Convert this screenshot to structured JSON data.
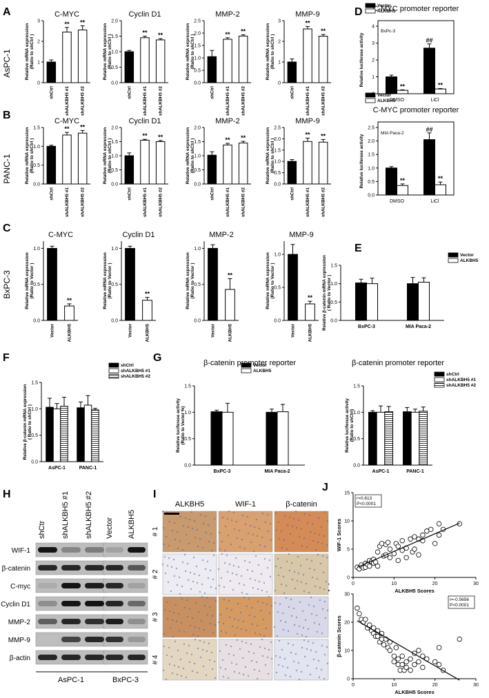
{
  "panel_letters": [
    "A",
    "B",
    "C",
    "D",
    "E",
    "F",
    "G",
    "H",
    "I",
    "J",
    "K"
  ],
  "row_labels": {
    "A": "AsPC-1",
    "B": "PANC-1",
    "C": "BxPC-3"
  },
  "sig": {
    "two": "**",
    "hash": "##"
  },
  "chart_data": [
    {
      "id": "A-cmyc",
      "type": "bar",
      "title": "C-MYC",
      "ylabel": "Relative mRNA expression\n(Ratio to shCtrl )",
      "categories": [
        "shCtrl",
        "shALKBH5 #1",
        "shALKBH5 #2"
      ],
      "values": [
        1.0,
        2.45,
        2.55
      ],
      "errors": [
        0.1,
        0.22,
        0.2
      ],
      "ylim": [
        0,
        3
      ],
      "ticks": [
        "0",
        "1",
        "2",
        "3"
      ],
      "fills": [
        "#000",
        "#fff",
        "#fff"
      ],
      "annot": [
        "",
        "**",
        "**"
      ]
    },
    {
      "id": "A-cyclin",
      "type": "bar",
      "title": "Cyclin D1",
      "ylabel": "Relative mRNA expression\n(Ratio to shCtrl )",
      "categories": [
        "shCtrl",
        "shALKBH5 #1",
        "shALKBH5 #2"
      ],
      "values": [
        1.0,
        1.45,
        1.38
      ],
      "errors": [
        0.04,
        0.05,
        0.04
      ],
      "ylim": [
        0,
        2
      ],
      "ticks": [
        "0.0",
        "0.5",
        "1.0",
        "1.5",
        "2.0"
      ],
      "fills": [
        "#000",
        "#fff",
        "#fff"
      ],
      "annot": [
        "",
        "**",
        "**"
      ]
    },
    {
      "id": "A-mmp2",
      "type": "bar",
      "title": "MMP-2",
      "ylabel": "Relative mRNA expression\n(Ratio to shCtrl )",
      "categories": [
        "shCtrl",
        "shALKBH5 #1",
        "shALKBH5 #2"
      ],
      "values": [
        1.05,
        1.75,
        1.88
      ],
      "errors": [
        0.25,
        0.06,
        0.05
      ],
      "ylim": [
        0,
        2.5
      ],
      "ticks": [
        "0.0",
        "0.5",
        "1.0",
        "1.5",
        "2.0",
        "2.5"
      ],
      "fills": [
        "#000",
        "#fff",
        "#fff"
      ],
      "annot": [
        "",
        "**",
        "**"
      ]
    },
    {
      "id": "A-mmp9",
      "type": "bar",
      "title": "MMP-9",
      "ylabel": "Relative mRNA expression\n(Ratio to shCtrl )",
      "categories": [
        "shCtrl",
        "shALKBH5 #1",
        "shALKBH5 #2"
      ],
      "values": [
        1.0,
        2.6,
        2.25
      ],
      "errors": [
        0.15,
        0.12,
        0.08
      ],
      "ylim": [
        0,
        3
      ],
      "ticks": [
        "0",
        "1",
        "2",
        "3"
      ],
      "fills": [
        "#000",
        "#fff",
        "#fff"
      ],
      "annot": [
        "",
        "**",
        "**"
      ]
    },
    {
      "id": "B-cmyc",
      "type": "bar",
      "title": "C-MYC",
      "ylabel": "Relative mRNA expression\n(Ratio to shCtrl )",
      "categories": [
        "shCtrl",
        "shALKBH5 #1",
        "shALKBH5 #2"
      ],
      "values": [
        1.0,
        1.3,
        1.35
      ],
      "errors": [
        0.03,
        0.07,
        0.07
      ],
      "ylim": [
        0,
        1.5
      ],
      "ticks": [
        "0.0",
        "0.5",
        "1.0",
        "1.5"
      ],
      "fills": [
        "#000",
        "#fff",
        "#fff"
      ],
      "annot": [
        "",
        "**",
        "**"
      ]
    },
    {
      "id": "B-cyclin",
      "type": "bar",
      "title": "Cyclin D1",
      "ylabel": "Relative mRNA expression\n(Ratio to shCtrl )",
      "categories": [
        "shCtrl",
        "shALKBH5 #1",
        "shALKBH5 #2"
      ],
      "values": [
        1.0,
        1.55,
        1.5
      ],
      "errors": [
        0.1,
        0.03,
        0.04
      ],
      "ylim": [
        0,
        2
      ],
      "ticks": [
        "0.0",
        "0.5",
        "1.0",
        "1.5",
        "2.0"
      ],
      "fills": [
        "#000",
        "#fff",
        "#fff"
      ],
      "annot": [
        "",
        "**",
        "**"
      ]
    },
    {
      "id": "B-mmp2",
      "type": "bar",
      "title": "MMP-2",
      "ylabel": "Relative mRNA expression\n(Ratio to shCtrl )",
      "categories": [
        "shCtrl",
        "shALKBH5 #1",
        "shALKBH5 #2"
      ],
      "values": [
        1.02,
        1.38,
        1.45
      ],
      "errors": [
        0.12,
        0.06,
        0.06
      ],
      "ylim": [
        0,
        2
      ],
      "ticks": [
        "0.0",
        "0.5",
        "1.0",
        "1.5",
        "2.0"
      ],
      "fills": [
        "#000",
        "#fff",
        "#fff"
      ],
      "annot": [
        "",
        "**",
        "**"
      ]
    },
    {
      "id": "B-mmp9",
      "type": "bar",
      "title": "MMP-9",
      "ylabel": "Relative mRNA expression\n(Ratio to shCtrl )",
      "categories": [
        "shCtrl",
        "shALKBH5 #1",
        "shALKBH5 #2"
      ],
      "values": [
        1.0,
        1.88,
        1.85
      ],
      "errors": [
        0.08,
        0.15,
        0.12
      ],
      "ylim": [
        0,
        2.5
      ],
      "ticks": [
        "0.0",
        "0.5",
        "1.0",
        "1.5",
        "2.0",
        "2.5"
      ],
      "fills": [
        "#000",
        "#fff",
        "#fff"
      ],
      "annot": [
        "",
        "**",
        "**"
      ]
    },
    {
      "id": "C-cmyc",
      "type": "bar",
      "title": "C-MYC",
      "ylabel": "Relative mRNA expression\n(Ratio to Vector )",
      "categories": [
        "Vector",
        "ALKBH5"
      ],
      "values": [
        1.0,
        0.2
      ],
      "errors": [
        0.03,
        0.03
      ],
      "ylim": [
        0,
        1.1
      ],
      "ticks": [
        "0.0",
        "0.5",
        "1.0"
      ],
      "fills": [
        "#000",
        "#fff"
      ],
      "annot": [
        "",
        "**"
      ]
    },
    {
      "id": "C-cyclin",
      "type": "bar",
      "title": "Cyclin D1",
      "ylabel": "Relative mRNA expression\n(Ratio to Vector )",
      "categories": [
        "Vector",
        "ALKBH5"
      ],
      "values": [
        1.0,
        0.28
      ],
      "errors": [
        0.03,
        0.04
      ],
      "ylim": [
        0,
        1.1
      ],
      "ticks": [
        "0.0",
        "0.5",
        "1.0"
      ],
      "fills": [
        "#000",
        "#fff"
      ],
      "annot": [
        "",
        "**"
      ]
    },
    {
      "id": "C-mmp2",
      "type": "bar",
      "title": "MMP-2",
      "ylabel": "Relative mRNA expression\n(Ratio to Vector )",
      "categories": [
        "Vector",
        "ALKBH5"
      ],
      "values": [
        1.0,
        0.43
      ],
      "errors": [
        0.05,
        0.15
      ],
      "ylim": [
        0,
        1.1
      ],
      "ticks": [
        "0.0",
        "0.5",
        "1.0"
      ],
      "fills": [
        "#000",
        "#fff"
      ],
      "annot": [
        "",
        "**"
      ]
    },
    {
      "id": "C-mmp9",
      "type": "bar",
      "title": "MMP-9",
      "ylabel": "Relative mRNA expression\n(Ratio to Vector )",
      "categories": [
        "Vector",
        "ALKBH5"
      ],
      "values": [
        1.0,
        0.25
      ],
      "errors": [
        0.15,
        0.04
      ],
      "ylim": [
        0,
        1.2
      ],
      "ticks": [
        "0.0",
        "0.5",
        "1.0"
      ],
      "fills": [
        "#000",
        "#fff"
      ],
      "annot": [
        "",
        "**"
      ]
    },
    {
      "id": "D-bxpc3",
      "type": "bar",
      "title": "C-MYC promoter reporter",
      "subtitle": "BxPc-3",
      "ylabel": "Relative luciferase activity",
      "legend": [
        "Vector",
        "ALKBH5"
      ],
      "categories": [
        "DMSO",
        "LiCl"
      ],
      "series": [
        {
          "name": "Vector",
          "values": [
            1.0,
            2.7
          ],
          "errors": [
            0.1,
            0.25
          ]
        },
        {
          "name": "ALKBH5",
          "values": [
            0.2,
            0.28
          ],
          "errors": [
            0.03,
            0.03
          ]
        }
      ],
      "annot": [
        [
          "",
          "##"
        ],
        [
          "**",
          "**"
        ]
      ],
      "ylim": [
        0,
        4
      ],
      "ticks": [
        "0",
        "1",
        "2",
        "3",
        "4"
      ]
    },
    {
      "id": "D-mia",
      "type": "bar",
      "title": "C-MYC promoter reporter",
      "subtitle": "MIA  Paca-2",
      "ylabel": "Relative luciferase activity",
      "legend": [
        "Vector",
        "ALKBH5"
      ],
      "categories": [
        "DMSO",
        "LiCl"
      ],
      "series": [
        {
          "name": "Vector",
          "values": [
            1.0,
            2.05
          ],
          "errors": [
            0.05,
            0.25
          ]
        },
        {
          "name": "ALKBH5",
          "values": [
            0.35,
            0.38
          ],
          "errors": [
            0.06,
            0.1
          ]
        }
      ],
      "annot": [
        [
          "",
          "##"
        ],
        [
          "**",
          "**"
        ]
      ],
      "ylim": [
        0,
        2.5
      ],
      "ticks": [
        "0.0",
        "0.5",
        "1.0",
        "1.5",
        "2.0",
        "2.5"
      ]
    },
    {
      "id": "E",
      "type": "bar",
      "title": "",
      "ylabel": "Relative β-catenin mRNA expression\n( Ratio to Vector )",
      "legend": [
        "Vector",
        "ALKBH5"
      ],
      "categories": [
        "BxPC-3",
        "MIA Paca-2"
      ],
      "series": [
        {
          "name": "Vector",
          "values": [
            1.02,
            1.0
          ],
          "errors": [
            0.1,
            0.17
          ]
        },
        {
          "name": "ALKBH5",
          "values": [
            1.0,
            1.04
          ],
          "errors": [
            0.15,
            0.12
          ]
        }
      ],
      "ylim": [
        0,
        1.5
      ],
      "ticks": [
        "0.0",
        "0.5",
        "1.0",
        "1.5"
      ]
    },
    {
      "id": "F",
      "type": "bar",
      "title": "",
      "ylabel": "Relative β-catenin mRNA expression\n( Ratio to shCtrl )",
      "legend": [
        "shCtrl",
        "shALKBH5 #1",
        "shALKBH5 #2"
      ],
      "categories": [
        "AsPC-1",
        "PANC-1"
      ],
      "series": [
        {
          "name": "shCtrl",
          "values": [
            1.03,
            1.02
          ],
          "errors": [
            0.17,
            0.11
          ]
        },
        {
          "name": "shALKBH5 #1",
          "values": [
            1.0,
            1.07
          ],
          "errors": [
            0.1,
            0.18
          ]
        },
        {
          "name": "shALKBH5 #2",
          "values": [
            1.05,
            0.98
          ],
          "errors": [
            0.17,
            0.03
          ]
        }
      ],
      "ylim": [
        0,
        1.5
      ],
      "ticks": [
        "0.0",
        "0.5",
        "1.0",
        "1.5"
      ]
    },
    {
      "id": "G-vec",
      "type": "bar",
      "title": "β-catenin promoter reporter",
      "ylabel": "Relative luciferase activity\n(Ratio to Vector %)",
      "legend": [
        "Vector",
        "ALKBH5"
      ],
      "categories": [
        "BxPC-3",
        "MIA Paca-2"
      ],
      "series": [
        {
          "name": "Vector",
          "values": [
            1.01,
            1.0
          ],
          "errors": [
            0.03,
            0.06
          ]
        },
        {
          "name": "ALKBH5",
          "values": [
            1.0,
            1.01
          ],
          "errors": [
            0.17,
            0.14
          ]
        }
      ],
      "ylim": [
        0,
        1.5
      ],
      "ticks": [
        "0.0",
        "0.5",
        "1.0",
        "1.5"
      ]
    },
    {
      "id": "G-sh",
      "type": "bar",
      "title": "β-catenin promoter reporter",
      "ylabel": "Relative luciferase activity\n(Ratio to shCtrl)",
      "legend": [
        "shCtrl",
        "shALKBH5 #1",
        "shALKBH5 #2"
      ],
      "categories": [
        "AsPC-1",
        "PANC-1"
      ],
      "series": [
        {
          "name": "shCtrl",
          "values": [
            1.0,
            1.01
          ],
          "errors": [
            0.03,
            0.08
          ]
        },
        {
          "name": "shALKBH5 #1",
          "values": [
            1.0,
            1.0
          ],
          "errors": [
            0.12,
            0.06
          ]
        },
        {
          "name": "shALKBH5 #2",
          "values": [
            1.01,
            1.02
          ],
          "errors": [
            0.1,
            0.08
          ]
        }
      ],
      "ylim": [
        0,
        1.5
      ],
      "ticks": [
        "0.0",
        "0.5",
        "1.0",
        "1.5"
      ]
    },
    {
      "id": "J",
      "type": "scatter",
      "xlabel": "ALKBH5 Scores",
      "ylabel": "WIF-1 Scores",
      "stats": [
        "r=0.613",
        "P<0.0001"
      ],
      "xlim": [
        0,
        30
      ],
      "ylim": [
        0,
        15
      ],
      "xticks": [
        0,
        10,
        20,
        30
      ],
      "yticks": [
        0,
        5,
        10,
        15
      ],
      "x": [
        1,
        1.5,
        2,
        2,
        2.5,
        3,
        3,
        3.5,
        4,
        4,
        4.5,
        5,
        5,
        5.5,
        6,
        6,
        6.5,
        7,
        7.5,
        8,
        8,
        8.5,
        9,
        9,
        10,
        10.5,
        11,
        11,
        12,
        12,
        13,
        13,
        14,
        14.5,
        15,
        15,
        16,
        16,
        17,
        17,
        18,
        19,
        20,
        21,
        21,
        22,
        26
      ],
      "y": [
        1.8,
        1.5,
        2,
        2.2,
        1.7,
        2.5,
        1.8,
        2.3,
        2,
        3,
        2.8,
        2.5,
        3.2,
        2.7,
        4.5,
        2,
        5.5,
        6,
        3.8,
        4,
        5.8,
        6.2,
        3.5,
        5,
        4.2,
        6,
        5.5,
        3,
        4.8,
        6.5,
        5.2,
        3.5,
        6.8,
        4.5,
        5,
        7.2,
        6.8,
        4,
        7.5,
        6.5,
        8.2,
        8.5,
        6,
        7.5,
        9.5,
        8.5,
        9.5
      ],
      "fit": {
        "x0": 1,
        "y0": 1.8,
        "x1": 26,
        "y1": 9.6
      }
    },
    {
      "id": "K",
      "type": "scatter",
      "xlabel": "ALKBH5 Scores",
      "ylabel": "β-catenin Scores",
      "stats": [
        "r=-0.5656",
        "P<0.0001"
      ],
      "xlim": [
        0,
        30
      ],
      "ylim": [
        0,
        30
      ],
      "xticks": [
        0,
        10,
        20,
        30
      ],
      "yticks": [
        0,
        10,
        20,
        30
      ],
      "x": [
        1,
        1.5,
        2,
        2.5,
        3,
        3.5,
        4,
        4.5,
        5,
        5,
        5.5,
        6,
        6,
        6.5,
        7,
        7,
        7.5,
        8,
        8.5,
        9,
        9,
        10,
        10,
        10.5,
        11,
        11,
        11.5,
        12,
        12,
        12.5,
        13,
        13,
        14,
        14,
        15,
        15,
        16,
        16,
        17,
        17,
        18,
        20,
        21,
        21,
        22,
        26
      ],
      "y": [
        25,
        23,
        21,
        20,
        21,
        18,
        19,
        17,
        16,
        18,
        15,
        17,
        15,
        13,
        14,
        16,
        12,
        14,
        11,
        13,
        10,
        8,
        6,
        11,
        5,
        7,
        3,
        8,
        5,
        3,
        6,
        4,
        7,
        3,
        5,
        9,
        6,
        10,
        4,
        8,
        7,
        6,
        5,
        11,
        3,
        14
      ],
      "fit": {
        "x0": 1,
        "y0": 20.5,
        "x1": 26,
        "y1": -0.5
      }
    }
  ],
  "blot": {
    "cols_left": [
      "shCtr",
      "shALKBH5 #1",
      "shALKBH5 #2"
    ],
    "cols_right": [
      "Vector",
      "ALKBH5"
    ],
    "rows": [
      "WIF-1",
      "β-catenin",
      "C-myc",
      "Cyclin D1",
      "MMP-2",
      "MMP-9",
      "β-actin"
    ],
    "cell_left": "AsPC-1",
    "cell_right": "BxPC-3",
    "intensity_left": [
      [
        0.95,
        0.35,
        0.4
      ],
      [
        0.85,
        0.85,
        0.85
      ],
      [
        0.15,
        0.95,
        0.9
      ],
      [
        0.3,
        0.95,
        0.95
      ],
      [
        0.55,
        0.85,
        0.8
      ],
      [
        0.05,
        0.7,
        0.85
      ],
      [
        0.85,
        0.85,
        0.85
      ]
    ],
    "intensity_right": [
      [
        0.2,
        0.95
      ],
      [
        0.85,
        0.6
      ],
      [
        0.85,
        0.2
      ],
      [
        0.85,
        0.5
      ],
      [
        0.9,
        0.3
      ],
      [
        0.8,
        0.25
      ],
      [
        0.85,
        0.85
      ]
    ]
  },
  "ihc": {
    "headers": [
      "ALKBH5",
      "WIF-1",
      "β-catenin"
    ],
    "rows": [
      "# 1",
      "# 2",
      "# 3",
      "# 4"
    ],
    "tints": [
      [
        "#c89a6e",
        "#d9a070",
        "#d48b55"
      ],
      [
        "#ececf2",
        "#eeeaf0",
        "#d8c7a8"
      ],
      [
        "#c89060",
        "#d49a62",
        "#d8d8e8"
      ],
      [
        "#e4d7c2",
        "#e8dfe2",
        "#e2e4ef"
      ]
    ]
  }
}
